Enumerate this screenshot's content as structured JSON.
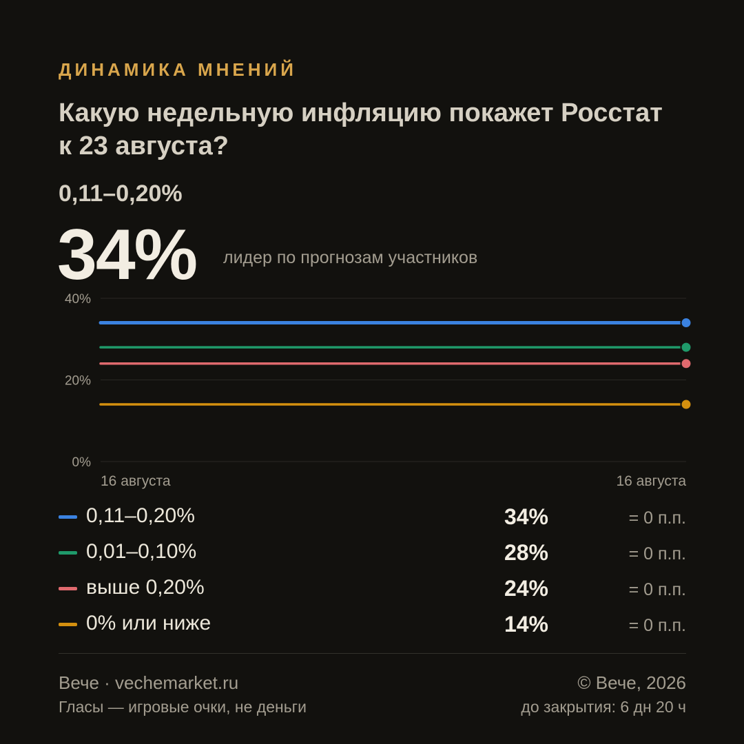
{
  "header": {
    "kicker": "ДИНАМИКА МНЕНИЙ",
    "question": "Какую недельную инфляцию покажет Росстат к 23 августа?",
    "leader_option": "0,11–0,20%",
    "leader_pct": "34%",
    "leader_caption": "лидер по прогнозам участников"
  },
  "colors": {
    "accent": "#d9a64c",
    "background": "#12110e",
    "series": [
      "#3b82e0",
      "#1f9a6a",
      "#e06a6e",
      "#d4900f"
    ]
  },
  "chart_data": {
    "type": "line",
    "x": [
      "16 августа",
      "16 августа"
    ],
    "ylim": [
      0,
      40
    ],
    "y_ticks": [
      "0%",
      "20%",
      "40%"
    ],
    "grid": true,
    "series": [
      {
        "name": "0,11–0,20%",
        "values": [
          34,
          34
        ]
      },
      {
        "name": "0,01–0,10%",
        "values": [
          28,
          28
        ]
      },
      {
        "name": "выше 0,20%",
        "values": [
          24,
          24
        ]
      },
      {
        "name": "0% или ниже",
        "values": [
          14,
          14
        ]
      }
    ]
  },
  "legend": [
    {
      "label": "0,11–0,20%",
      "value": "34%",
      "change": "= 0 п.п."
    },
    {
      "label": "0,01–0,10%",
      "value": "28%",
      "change": "= 0 п.п."
    },
    {
      "label": "выше 0,20%",
      "value": "24%",
      "change": "= 0 п.п."
    },
    {
      "label": "0% или ниже",
      "value": "14%",
      "change": "= 0 п.п."
    }
  ],
  "footer": {
    "brand": "Вече · vechemarket.ru",
    "note": "Гласы — игровые очки, не деньги",
    "copyright": "© Вече, 2026",
    "closing": "до закрытия: 6 дн 20 ч"
  }
}
